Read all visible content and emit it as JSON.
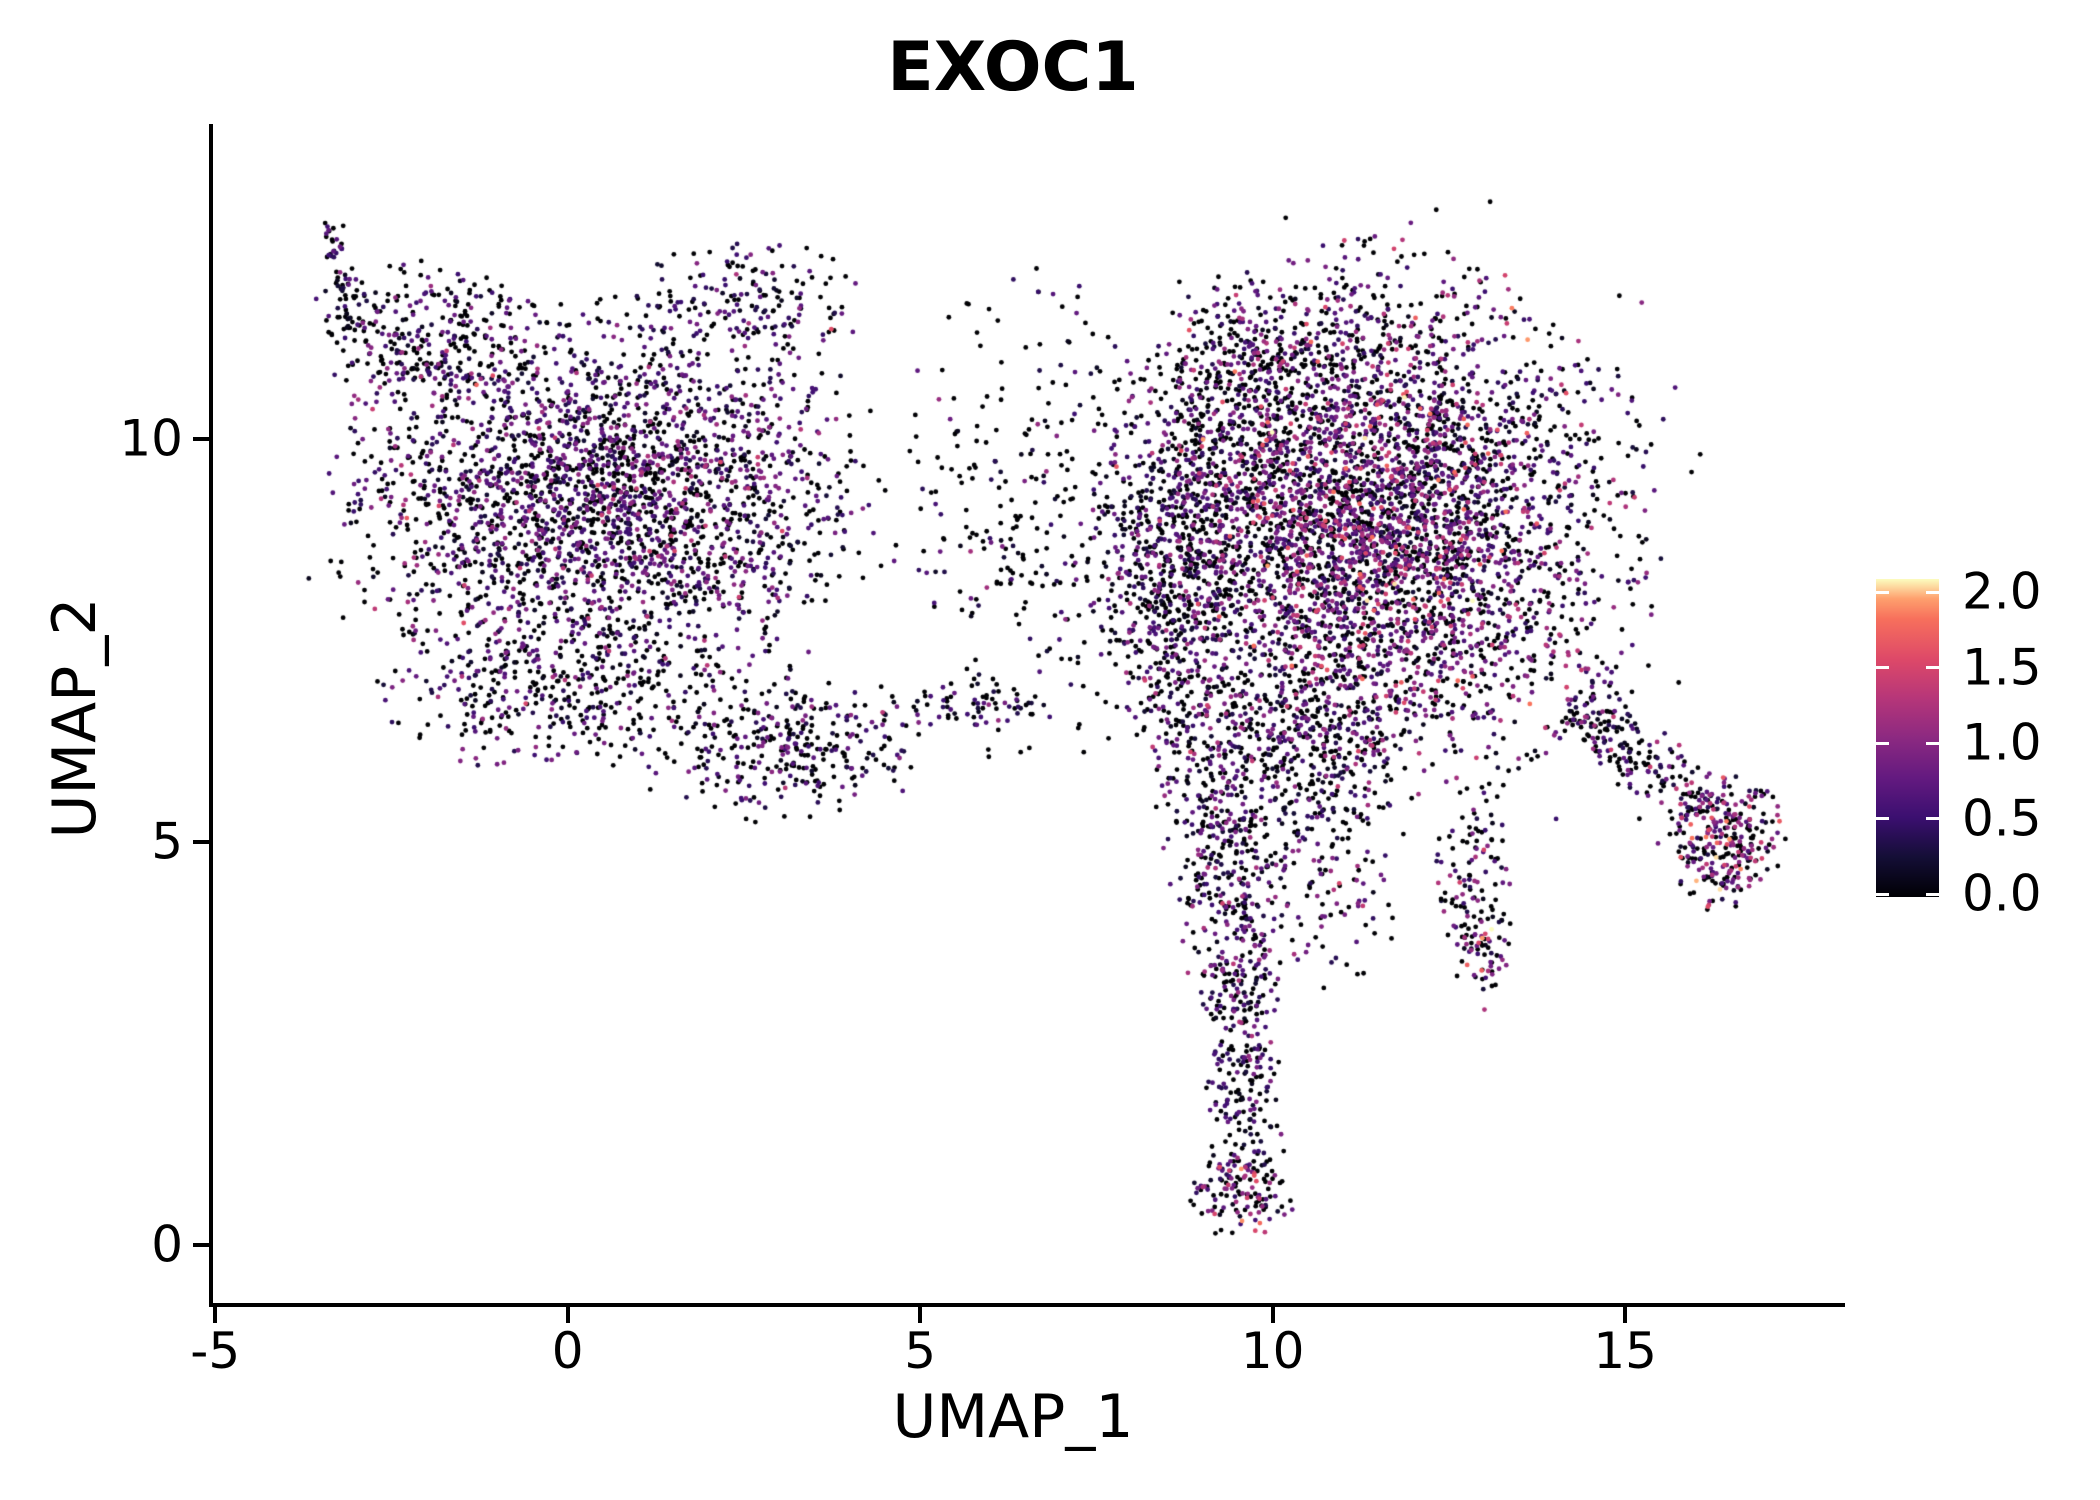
{
  "page": {
    "background": "#ffffff"
  },
  "chart_data": {
    "type": "scatter",
    "title": "EXOC1",
    "xlabel": "UMAP_1",
    "ylabel": "UMAP_2",
    "xlim": [
      -5.06,
      18.09
    ],
    "ylim": [
      -0.74,
      13.91
    ],
    "grid": false,
    "x_ticks": [
      {
        "value": -5,
        "label": "-5"
      },
      {
        "value": 0,
        "label": "0"
      },
      {
        "value": 5,
        "label": "5"
      },
      {
        "value": 10,
        "label": "10"
      },
      {
        "value": 15,
        "label": "15"
      }
    ],
    "y_ticks": [
      {
        "value": 0,
        "label": "0"
      },
      {
        "value": 5,
        "label": "5"
      },
      {
        "value": 10,
        "label": "10"
      }
    ],
    "legend": {
      "position": "right",
      "vmin": 0.0,
      "vmax": 2.0,
      "ticks": [
        {
          "value": 0.0,
          "label": "0.0"
        },
        {
          "value": 0.5,
          "label": "0.5"
        },
        {
          "value": 1.0,
          "label": "1.0"
        },
        {
          "value": 1.5,
          "label": "1.5"
        },
        {
          "value": 2.0,
          "label": "2.0"
        }
      ]
    },
    "colormap": {
      "name": "magma",
      "stops": [
        [
          0.0,
          "#000004"
        ],
        [
          0.125,
          "#140e36"
        ],
        [
          0.25,
          "#3b0f70"
        ],
        [
          0.375,
          "#641a80"
        ],
        [
          0.5,
          "#8c2981"
        ],
        [
          0.625,
          "#b63679"
        ],
        [
          0.75,
          "#de4968"
        ],
        [
          0.875,
          "#f7705c"
        ],
        [
          0.9375,
          "#fe9f6d"
        ],
        [
          1.0,
          "#fcfdbf"
        ]
      ]
    },
    "point_radius_px": 2.4,
    "seed": 20240,
    "clusters": [
      {
        "name": "left-tip-strand",
        "shape": "strand",
        "x1": -3.37,
        "y1": 12.65,
        "x2": -3.05,
        "y2": 11.35,
        "w": 0.1,
        "n": 70,
        "zero_frac": 0.55,
        "mu": 0.5,
        "sigma": 0.3
      },
      {
        "name": "left-upper-band",
        "shape": "gauss",
        "cx": -1.9,
        "cy": 11.3,
        "sx": 0.85,
        "sy": 0.45,
        "cap": 2.2,
        "n": 280,
        "zero_frac": 0.48,
        "mu": 0.58,
        "sigma": 0.3
      },
      {
        "name": "left-body",
        "shape": "gauss",
        "cx": 0.5,
        "cy": 9.3,
        "sx": 1.7,
        "sy": 1.05,
        "cap": 2.4,
        "n": 2500,
        "zero_frac": 0.42,
        "mu": 0.62,
        "sigma": 0.33
      },
      {
        "name": "left-body-low",
        "shape": "gauss",
        "cx": -0.3,
        "cy": 6.9,
        "sx": 1.15,
        "sy": 0.5,
        "cap": 2.2,
        "n": 360,
        "zero_frac": 0.46,
        "mu": 0.6,
        "sigma": 0.3
      },
      {
        "name": "left-bottom-right",
        "shape": "gauss",
        "cx": 3.0,
        "cy": 6.2,
        "sx": 1.0,
        "sy": 0.45,
        "cap": 2.2,
        "n": 340,
        "zero_frac": 0.5,
        "mu": 0.55,
        "sigma": 0.3
      },
      {
        "name": "left-top-bump",
        "shape": "gauss",
        "cx": 2.6,
        "cy": 11.7,
        "sx": 0.85,
        "sy": 0.4,
        "cap": 2.0,
        "n": 170,
        "zero_frac": 0.5,
        "mu": 0.55,
        "sigma": 0.3
      },
      {
        "name": "left-halo",
        "shape": "ring",
        "cx": 0.5,
        "cy": 9.3,
        "sx": 2.1,
        "sy": 1.4,
        "rmin": 1.15,
        "rmax": 2.2,
        "n": 80,
        "zero_frac": 0.6,
        "mu": 0.5,
        "sigma": 0.3
      },
      {
        "name": "bridge",
        "shape": "gauss",
        "cx": 6.7,
        "cy": 9.0,
        "sx": 1.1,
        "sy": 1.5,
        "cap": 2.1,
        "n": 300,
        "zero_frac": 0.7,
        "mu": 0.5,
        "sigma": 0.3
      },
      {
        "name": "bridge-low-strand",
        "shape": "gauss",
        "cx": 5.8,
        "cy": 6.7,
        "sx": 0.55,
        "sy": 0.18,
        "cap": 2.2,
        "n": 70,
        "zero_frac": 0.6,
        "mu": 0.5,
        "sigma": 0.3
      },
      {
        "name": "right-blob",
        "shape": "gauss",
        "cx": 11.4,
        "cy": 8.95,
        "sx": 1.62,
        "sy": 1.38,
        "cap": 2.6,
        "n": 4300,
        "zero_frac": 0.36,
        "mu": 0.72,
        "sigma": 0.42
      },
      {
        "name": "right-blob-left-col",
        "shape": "gauss",
        "cx": 8.65,
        "cy": 8.4,
        "sx": 0.5,
        "sy": 1.35,
        "cap": 2.2,
        "n": 620,
        "zero_frac": 0.52,
        "mu": 0.55,
        "sigma": 0.35
      },
      {
        "name": "right-blob-top-arm",
        "shape": "gauss",
        "cx": 9.95,
        "cy": 10.9,
        "sx": 0.75,
        "sy": 0.5,
        "cap": 2.2,
        "n": 260,
        "zero_frac": 0.5,
        "mu": 0.6,
        "sigma": 0.35
      },
      {
        "name": "under-blob",
        "shape": "gauss",
        "cx": 10.6,
        "cy": 6.3,
        "sx": 0.65,
        "sy": 0.55,
        "cap": 2.2,
        "n": 250,
        "zero_frac": 0.45,
        "mu": 0.65,
        "sigma": 0.35
      },
      {
        "name": "right-halo",
        "shape": "ring",
        "cx": 11.4,
        "cy": 8.95,
        "sx": 2.2,
        "sy": 1.9,
        "rmin": 1.15,
        "rmax": 2.3,
        "n": 140,
        "zero_frac": 0.6,
        "mu": 0.5,
        "sigma": 0.3
      },
      {
        "name": "tail-1",
        "shape": "gauss",
        "cx": 9.35,
        "cy": 5.55,
        "sx": 0.48,
        "sy": 0.75,
        "cap": 2.2,
        "n": 250,
        "zero_frac": 0.46,
        "mu": 0.6,
        "sigma": 0.33
      },
      {
        "name": "tail-2",
        "shape": "gauss",
        "cx": 9.45,
        "cy": 4.2,
        "sx": 0.36,
        "sy": 0.7,
        "cap": 2.2,
        "n": 190,
        "zero_frac": 0.46,
        "mu": 0.6,
        "sigma": 0.33
      },
      {
        "name": "tail-3",
        "shape": "gauss",
        "cx": 9.55,
        "cy": 2.8,
        "sx": 0.3,
        "sy": 0.7,
        "cap": 2.2,
        "n": 150,
        "zero_frac": 0.46,
        "mu": 0.6,
        "sigma": 0.3
      },
      {
        "name": "tail-4",
        "shape": "gauss",
        "cx": 9.6,
        "cy": 1.5,
        "sx": 0.28,
        "sy": 0.5,
        "cap": 2.2,
        "n": 110,
        "zero_frac": 0.46,
        "mu": 0.6,
        "sigma": 0.3
      },
      {
        "name": "tail-foot",
        "shape": "gauss",
        "cx": 9.55,
        "cy": 0.6,
        "sx": 0.35,
        "sy": 0.25,
        "cap": 2.2,
        "n": 110,
        "zero_frac": 0.33,
        "mu": 0.8,
        "sigma": 0.45
      },
      {
        "name": "tail-side",
        "shape": "gauss",
        "cx": 10.8,
        "cy": 4.9,
        "sx": 0.5,
        "sy": 0.85,
        "cap": 2.2,
        "n": 150,
        "zero_frac": 0.5,
        "mu": 0.6,
        "sigma": 0.35
      },
      {
        "name": "spur",
        "shape": "gauss",
        "cx": 12.9,
        "cy": 4.4,
        "sx": 0.28,
        "sy": 0.75,
        "cap": 2.2,
        "n": 130,
        "zero_frac": 0.5,
        "mu": 0.6,
        "sigma": 0.35
      },
      {
        "name": "spur-knot",
        "shape": "gauss",
        "cx": 13.0,
        "cy": 3.7,
        "sx": 0.2,
        "sy": 0.2,
        "cap": 2.0,
        "n": 35,
        "zero_frac": 0.3,
        "mu": 1.05,
        "sigma": 0.5
      },
      {
        "name": "appendage-strand",
        "shape": "strand",
        "x1": 14.2,
        "y1": 6.76,
        "x2": 16.05,
        "y2": 5.4,
        "w": 0.22,
        "n": 210,
        "zero_frac": 0.5,
        "mu": 0.6,
        "sigma": 0.35
      },
      {
        "name": "appendage-knot",
        "shape": "gauss",
        "cx": 16.45,
        "cy": 5.0,
        "sx": 0.38,
        "sy": 0.42,
        "cap": 2.2,
        "n": 280,
        "zero_frac": 0.32,
        "mu": 0.85,
        "sigma": 0.45
      }
    ]
  }
}
